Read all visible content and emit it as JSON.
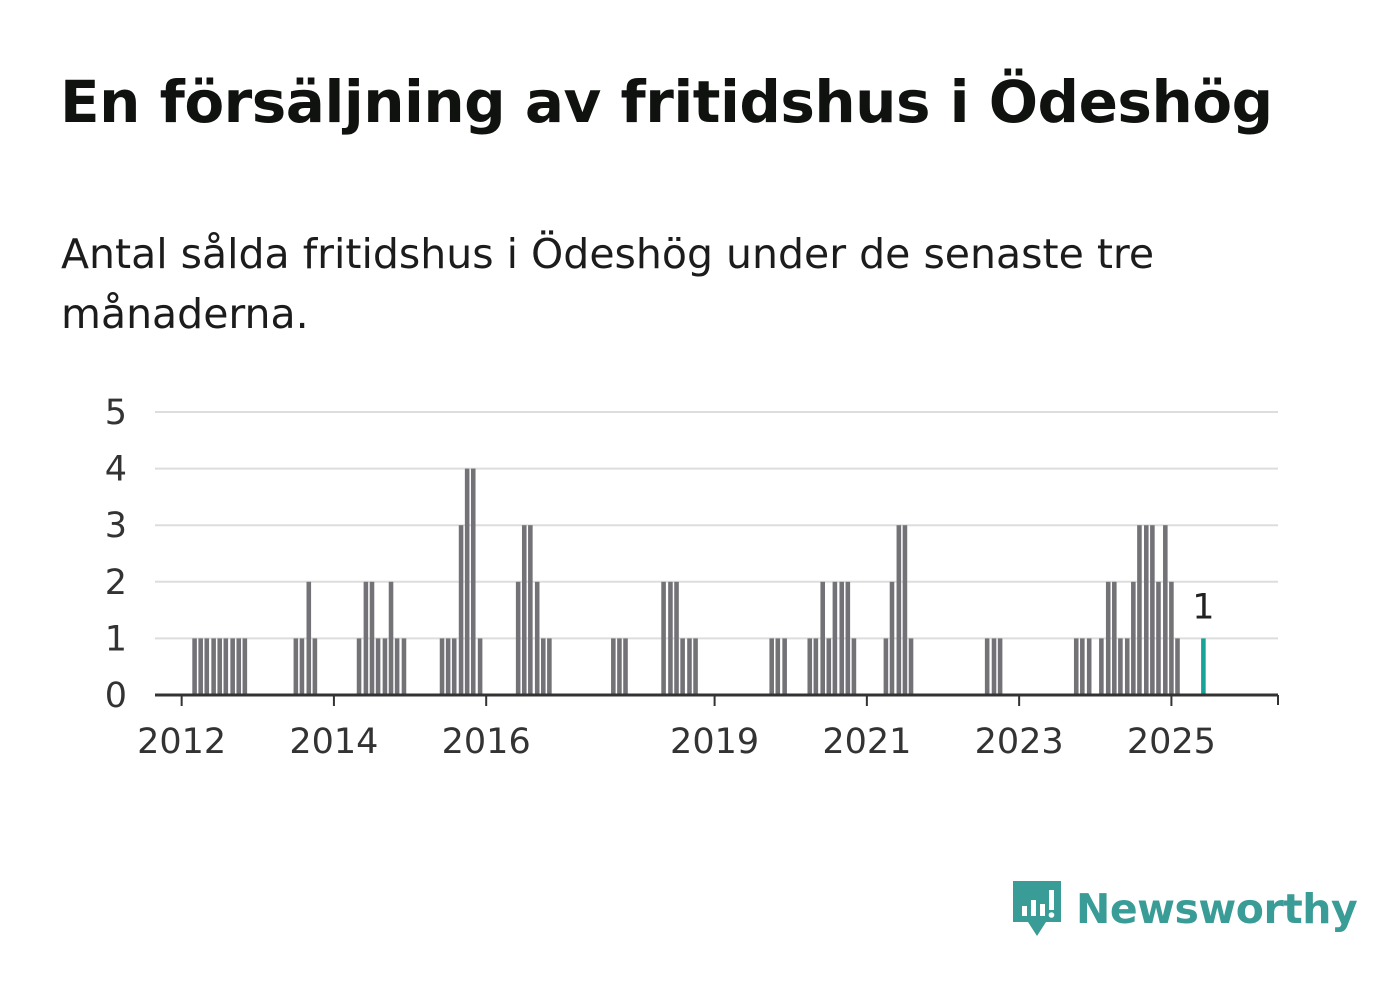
{
  "title": "En försäljning av fritidshus i Ödeshög",
  "subtitle": "Antal sålda fritidshus i Ödeshög under de senaste tre månaderna.",
  "brand": {
    "name": "Newsworthy",
    "color": "#3a9c96",
    "icon": "newsworthy-logo-icon"
  },
  "colors": {
    "bar": "#727277",
    "highlight": "#17a39a",
    "grid": "#dddddd",
    "axis": "#333333"
  },
  "chart_data": {
    "type": "bar",
    "title": "En försäljning av fritidshus i Ödeshög",
    "xlabel": "",
    "ylabel": "",
    "ylim": [
      0,
      5
    ],
    "yticks": [
      0,
      1,
      2,
      3,
      4,
      5
    ],
    "xlim": [
      2011.65,
      2026.4
    ],
    "xticks": [
      {
        "label": "2012",
        "value": 2012.0
      },
      {
        "label": "2014",
        "value": 2014.0
      },
      {
        "label": "2016",
        "value": 2016.0
      },
      {
        "label": "2019",
        "value": 2019.0
      },
      {
        "label": "2021",
        "value": 2021.0
      },
      {
        "label": "2023",
        "value": 2023.0
      },
      {
        "label": "2025",
        "value": 2025.0
      }
    ],
    "grid": true,
    "series": [
      {
        "values": [
          {
            "x": 2012.17,
            "y": 1
          },
          {
            "x": 2012.25,
            "y": 1
          },
          {
            "x": 2012.33,
            "y": 1
          },
          {
            "x": 2012.42,
            "y": 1
          },
          {
            "x": 2012.5,
            "y": 1
          },
          {
            "x": 2012.58,
            "y": 1
          },
          {
            "x": 2012.67,
            "y": 1
          },
          {
            "x": 2012.75,
            "y": 1
          },
          {
            "x": 2012.83,
            "y": 1
          },
          {
            "x": 2013.5,
            "y": 1
          },
          {
            "x": 2013.58,
            "y": 1
          },
          {
            "x": 2013.67,
            "y": 2
          },
          {
            "x": 2013.75,
            "y": 1
          },
          {
            "x": 2014.33,
            "y": 1
          },
          {
            "x": 2014.42,
            "y": 2
          },
          {
            "x": 2014.5,
            "y": 2
          },
          {
            "x": 2014.58,
            "y": 1
          },
          {
            "x": 2014.67,
            "y": 1
          },
          {
            "x": 2014.75,
            "y": 2
          },
          {
            "x": 2014.83,
            "y": 1
          },
          {
            "x": 2014.92,
            "y": 1
          },
          {
            "x": 2015.42,
            "y": 1
          },
          {
            "x": 2015.5,
            "y": 1
          },
          {
            "x": 2015.58,
            "y": 1
          },
          {
            "x": 2015.67,
            "y": 3
          },
          {
            "x": 2015.75,
            "y": 4
          },
          {
            "x": 2015.83,
            "y": 4
          },
          {
            "x": 2015.92,
            "y": 1
          },
          {
            "x": 2016.42,
            "y": 2
          },
          {
            "x": 2016.5,
            "y": 3
          },
          {
            "x": 2016.58,
            "y": 3
          },
          {
            "x": 2016.67,
            "y": 2
          },
          {
            "x": 2016.75,
            "y": 1
          },
          {
            "x": 2016.83,
            "y": 1
          },
          {
            "x": 2017.67,
            "y": 1
          },
          {
            "x": 2017.75,
            "y": 1
          },
          {
            "x": 2017.83,
            "y": 1
          },
          {
            "x": 2018.33,
            "y": 2
          },
          {
            "x": 2018.42,
            "y": 2
          },
          {
            "x": 2018.5,
            "y": 2
          },
          {
            "x": 2018.58,
            "y": 1
          },
          {
            "x": 2018.67,
            "y": 1
          },
          {
            "x": 2018.75,
            "y": 1
          },
          {
            "x": 2019.75,
            "y": 1
          },
          {
            "x": 2019.83,
            "y": 1
          },
          {
            "x": 2019.92,
            "y": 1
          },
          {
            "x": 2020.25,
            "y": 1
          },
          {
            "x": 2020.33,
            "y": 1
          },
          {
            "x": 2020.42,
            "y": 2
          },
          {
            "x": 2020.5,
            "y": 1
          },
          {
            "x": 2020.58,
            "y": 2
          },
          {
            "x": 2020.67,
            "y": 2
          },
          {
            "x": 2020.75,
            "y": 2
          },
          {
            "x": 2020.83,
            "y": 1
          },
          {
            "x": 2021.25,
            "y": 1
          },
          {
            "x": 2021.33,
            "y": 2
          },
          {
            "x": 2021.42,
            "y": 3
          },
          {
            "x": 2021.5,
            "y": 3
          },
          {
            "x": 2021.58,
            "y": 1
          },
          {
            "x": 2022.58,
            "y": 1
          },
          {
            "x": 2022.67,
            "y": 1
          },
          {
            "x": 2022.75,
            "y": 1
          },
          {
            "x": 2023.75,
            "y": 1
          },
          {
            "x": 2023.83,
            "y": 1
          },
          {
            "x": 2023.92,
            "y": 1
          },
          {
            "x": 2024.08,
            "y": 1
          },
          {
            "x": 2024.17,
            "y": 2
          },
          {
            "x": 2024.25,
            "y": 2
          },
          {
            "x": 2024.33,
            "y": 1
          },
          {
            "x": 2024.42,
            "y": 1
          },
          {
            "x": 2024.5,
            "y": 2
          },
          {
            "x": 2024.58,
            "y": 3
          },
          {
            "x": 2024.67,
            "y": 3
          },
          {
            "x": 2024.75,
            "y": 3
          },
          {
            "x": 2024.83,
            "y": 2
          },
          {
            "x": 2024.92,
            "y": 3
          },
          {
            "x": 2025.0,
            "y": 2
          },
          {
            "x": 2025.08,
            "y": 1
          },
          {
            "x": 2025.42,
            "y": 1,
            "highlight": true,
            "label": "1"
          }
        ]
      }
    ]
  }
}
